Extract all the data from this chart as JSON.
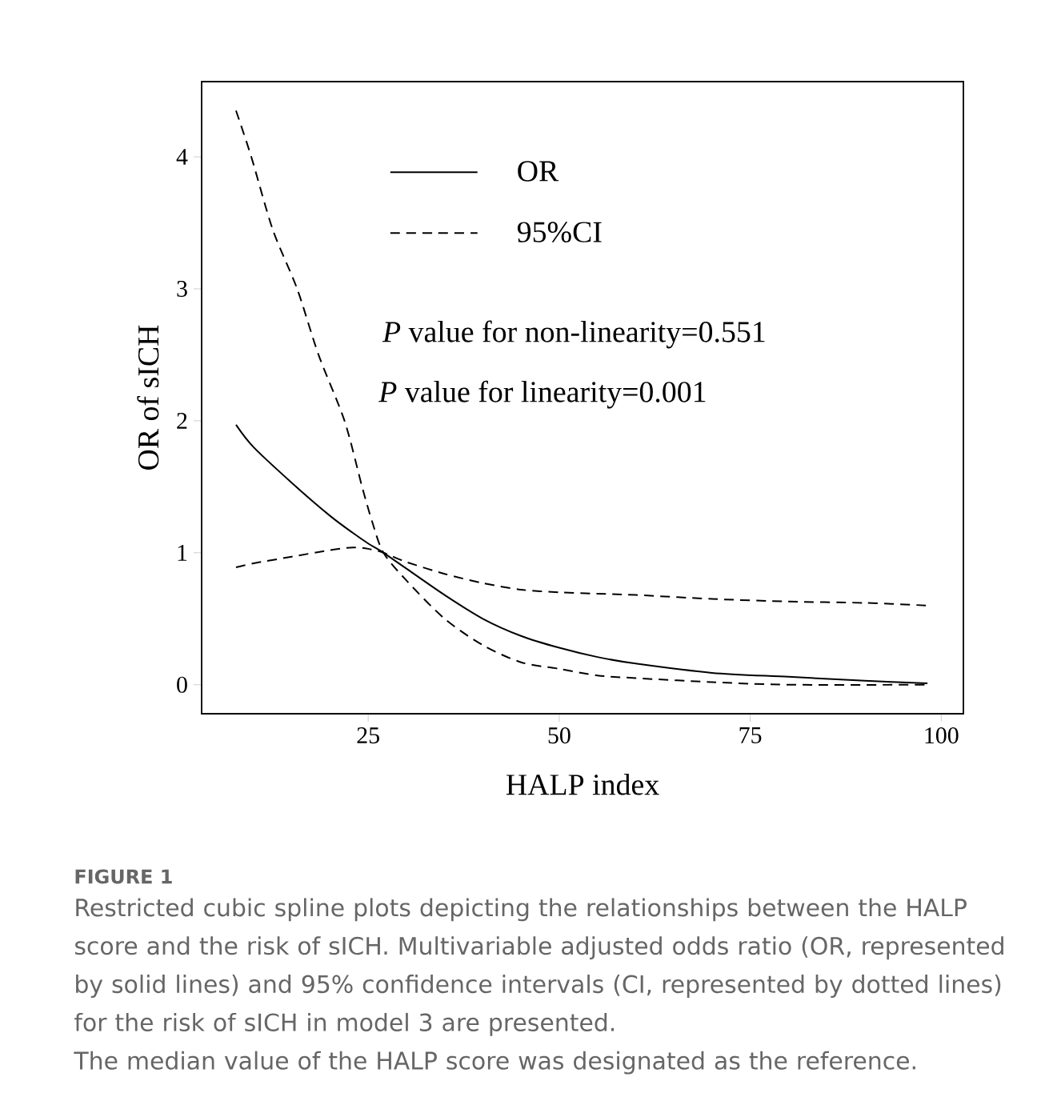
{
  "chart_data": {
    "type": "line",
    "xlabel": "HALP index",
    "ylabel": "OR of sICH",
    "x": [
      7.7,
      10,
      15,
      20,
      23,
      25,
      27,
      30,
      35,
      40,
      45,
      50,
      55,
      60,
      70,
      80,
      90,
      98.2
    ],
    "series": [
      {
        "name": "OR",
        "color": "#000000",
        "line_style": "solid",
        "values": [
          1.97,
          1.8,
          1.53,
          1.28,
          1.15,
          1.07,
          1.0,
          0.88,
          0.68,
          0.5,
          0.37,
          0.28,
          0.21,
          0.16,
          0.09,
          0.06,
          0.03,
          0.01
        ]
      },
      {
        "name": "95%CI",
        "color": "#000000",
        "line_style": "dashed",
        "x": [
          7.7,
          9.7,
          12.5,
          15.7,
          18.5,
          21.9,
          24.2,
          25.6,
          27,
          30,
          35,
          40,
          45,
          50,
          55,
          60,
          70,
          80,
          98.2
        ],
        "values": [
          4.35,
          4.0,
          3.45,
          3.0,
          2.5,
          2.0,
          1.5,
          1.22,
          1.0,
          0.79,
          0.5,
          0.3,
          0.17,
          0.12,
          0.07,
          0.05,
          0.02,
          0.0,
          0.0
        ]
      },
      {
        "color": "#000000",
        "line_style": "dashed",
        "values": [
          0.89,
          0.92,
          0.97,
          1.02,
          1.04,
          1.03,
          1.0,
          0.93,
          0.84,
          0.77,
          0.72,
          0.7,
          0.69,
          0.68,
          0.65,
          0.63,
          0.62,
          0.6
        ]
      }
    ],
    "xlim": [
      3.2,
      102.9
    ],
    "ylim": [
      -0.22,
      4.57
    ],
    "xticks": [
      25,
      50,
      75,
      100
    ],
    "yticks": [
      0,
      1,
      2,
      3,
      4
    ],
    "grid": false,
    "legend": "top",
    "marker": "none",
    "annotations": [
      "*P* value for non-linearity=0.551",
      "*P* value for linearity=0.001",
      "FIGURE 1",
      "Restricted cubic spline plots depicting the relationships between the HALP score and the risk of sICH. Multivariable adjusted odds ratio (OR, represented by solid lines) and 95% confidence intervals (CI, represented by dotted lines) for the risk of sICH in model 3 are presented.",
      "The median value of the HALP score was designated as the reference."
    ]
  }
}
